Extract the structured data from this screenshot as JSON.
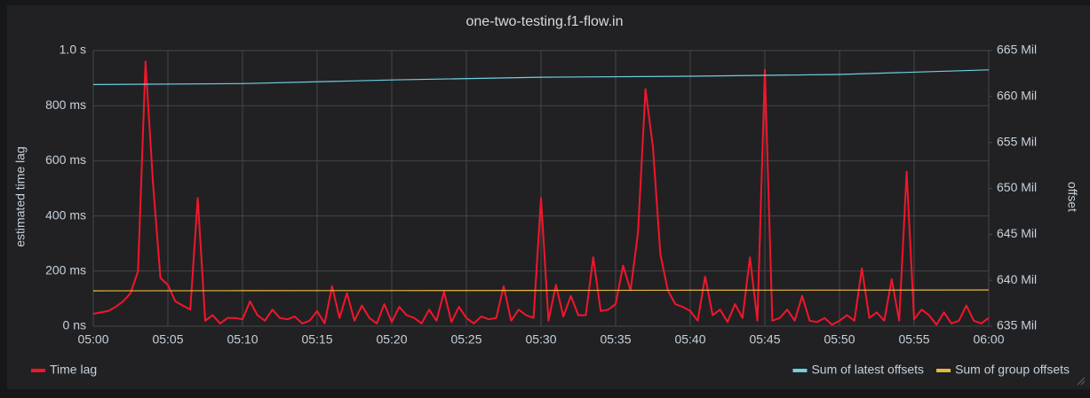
{
  "chart_data": {
    "type": "line",
    "title": "one-two-testing.f1-flow.in",
    "ylabel": "estimated time lag",
    "y2label": "offset",
    "xlim": [
      0,
      60
    ],
    "xticks": [
      {
        "value": 0,
        "label": "05:00"
      },
      {
        "value": 5,
        "label": "05:05"
      },
      {
        "value": 10,
        "label": "05:10"
      },
      {
        "value": 15,
        "label": "05:15"
      },
      {
        "value": 20,
        "label": "05:20"
      },
      {
        "value": 25,
        "label": "05:25"
      },
      {
        "value": 30,
        "label": "05:30"
      },
      {
        "value": 35,
        "label": "05:35"
      },
      {
        "value": 40,
        "label": "05:40"
      },
      {
        "value": 45,
        "label": "05:45"
      },
      {
        "value": 50,
        "label": "05:50"
      },
      {
        "value": 55,
        "label": "05:55"
      },
      {
        "value": 60,
        "label": "06:00"
      }
    ],
    "ylim": [
      0,
      1000
    ],
    "yticks": [
      {
        "value": 0,
        "label": "0 ns"
      },
      {
        "value": 200,
        "label": "200 ms"
      },
      {
        "value": 400,
        "label": "400 ms"
      },
      {
        "value": 600,
        "label": "600 ms"
      },
      {
        "value": 800,
        "label": "800 ms"
      },
      {
        "value": 1000,
        "label": "1.0 s"
      }
    ],
    "y2lim": [
      635,
      665
    ],
    "y2ticks": [
      {
        "value": 635,
        "label": "635 Mil"
      },
      {
        "value": 640,
        "label": "640 Mil"
      },
      {
        "value": 645,
        "label": "645 Mil"
      },
      {
        "value": 650,
        "label": "650 Mil"
      },
      {
        "value": 655,
        "label": "655 Mil"
      },
      {
        "value": 660,
        "label": "660 Mil"
      },
      {
        "value": 665,
        "label": "665 Mil"
      }
    ],
    "grid": true,
    "series": [
      {
        "name": "Time lag",
        "color": "#f2162a",
        "legend": "left",
        "x": [
          0,
          0.5,
          1,
          1.5,
          2,
          2.5,
          3,
          3.5,
          4,
          4.5,
          5,
          5.5,
          6,
          6.5,
          7,
          7.5,
          8,
          8.5,
          9,
          9.5,
          10,
          10.5,
          11,
          11.5,
          12,
          12.5,
          13,
          13.5,
          14,
          14.5,
          15,
          15.5,
          16,
          16.5,
          17,
          17.5,
          18,
          18.5,
          19,
          19.5,
          20,
          20.5,
          21,
          21.5,
          22,
          22.5,
          23,
          23.5,
          24,
          24.5,
          25,
          25.5,
          26,
          26.5,
          27,
          27.5,
          28,
          28.5,
          29,
          29.5,
          30,
          30.5,
          31,
          31.5,
          32,
          32.5,
          33,
          33.5,
          34,
          34.5,
          35,
          35.5,
          36,
          36.5,
          37,
          37.5,
          38,
          38.5,
          39,
          39.5,
          40,
          40.5,
          41,
          41.5,
          42,
          42.5,
          43,
          43.5,
          44,
          44.5,
          45,
          45.5,
          46,
          46.5,
          47,
          47.5,
          48,
          48.5,
          49,
          49.5,
          50,
          50.5,
          51,
          51.5,
          52,
          52.5,
          53,
          53.5,
          54,
          54.5,
          55,
          55.5,
          56,
          56.5,
          57,
          57.5,
          58,
          58.5,
          59,
          59.5,
          60
        ],
        "values": [
          45,
          50,
          55,
          70,
          90,
          120,
          200,
          960,
          520,
          175,
          150,
          90,
          75,
          60,
          465,
          20,
          40,
          10,
          30,
          30,
          25,
          90,
          40,
          20,
          60,
          30,
          25,
          35,
          10,
          20,
          55,
          10,
          145,
          30,
          120,
          20,
          75,
          30,
          10,
          80,
          15,
          70,
          40,
          30,
          10,
          60,
          20,
          125,
          15,
          70,
          30,
          10,
          35,
          25,
          30,
          145,
          20,
          60,
          40,
          30,
          465,
          20,
          150,
          35,
          110,
          40,
          40,
          250,
          55,
          60,
          80,
          220,
          130,
          340,
          860,
          650,
          260,
          130,
          80,
          70,
          55,
          20,
          180,
          40,
          60,
          15,
          80,
          30,
          250,
          20,
          930,
          20,
          30,
          60,
          20,
          110,
          20,
          15,
          30,
          5,
          20,
          40,
          20,
          210,
          30,
          50,
          20,
          170,
          20,
          560,
          25,
          60,
          40,
          5,
          50,
          10,
          20,
          75,
          20,
          10,
          30
        ]
      },
      {
        "name": "Sum of latest offsets",
        "color": "#6ed0e0",
        "axis": "y2",
        "legend": "right",
        "x": [
          0,
          10,
          20,
          30,
          40,
          50,
          60
        ],
        "values": [
          661.3,
          661.4,
          661.8,
          662.1,
          662.2,
          662.4,
          662.9
        ]
      },
      {
        "name": "Sum of group offsets",
        "color": "#eab839",
        "axis": "y2",
        "legend": "right",
        "x": [
          0,
          10,
          20,
          30,
          40,
          50,
          60
        ],
        "values": [
          638.85,
          638.87,
          638.88,
          638.9,
          638.92,
          638.93,
          638.95
        ]
      }
    ]
  }
}
